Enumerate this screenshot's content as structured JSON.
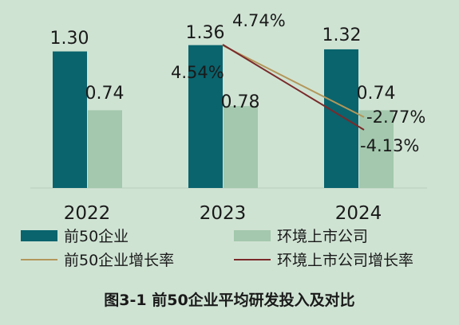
{
  "caption": "图3-1 前50企业平均研发投入及对比",
  "chart_data": {
    "type": "bar",
    "title": "",
    "xlabel": "",
    "ylabel": "",
    "categories": [
      "2022",
      "2023",
      "2024"
    ],
    "series": [
      {
        "name": "前50企业",
        "type": "bar",
        "color": "#09646e",
        "values": [
          1.3,
          1.36,
          1.32
        ],
        "labels": [
          "1.30",
          "1.36",
          "1.32"
        ]
      },
      {
        "name": "环境上市公司",
        "type": "bar",
        "color": "#a3c8ad",
        "values": [
          0.74,
          0.78,
          0.74
        ],
        "labels": [
          "0.74",
          "0.78",
          "0.74"
        ]
      }
    ],
    "growth_series": [
      {
        "name": "前50企业增长率",
        "type": "line",
        "color": "#b3975a",
        "from": "2023",
        "to": "2024",
        "values_pct": [
          4.54,
          -2.77
        ],
        "labels": [
          "4.54%",
          "-2.77%"
        ]
      },
      {
        "name": "环境上市公司增长率",
        "type": "line",
        "color": "#7a2a2a",
        "from": "2023",
        "to": "2024",
        "values_pct": [
          4.74,
          -4.13
        ],
        "labels": [
          "4.74%",
          "-4.13%"
        ]
      }
    ],
    "ylim": [
      0,
      1.6
    ],
    "grid": false,
    "legend_position": "bottom"
  }
}
